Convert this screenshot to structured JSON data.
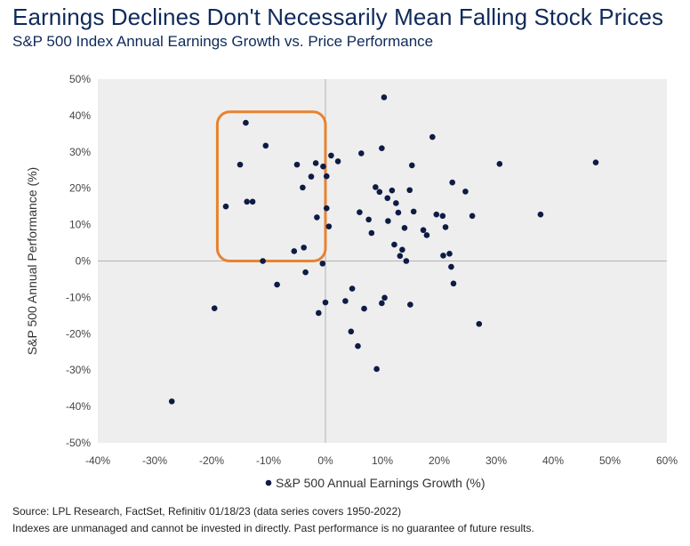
{
  "header": {
    "title": "Earnings Declines Don't Necessarily Mean Falling Stock Prices",
    "subtitle": "S&P 500 Index Annual Earnings Growth vs. Price Performance"
  },
  "footer": {
    "source": "Source: LPL Research, FactSet, Refinitiv 01/18/23 (data series covers 1950-2022)",
    "disclaimer": "Indexes are unmanaged and cannot be invested in directly. Past performance is no guarantee of future results."
  },
  "colors": {
    "point": "#0d1b45",
    "highlight_box": "#e8822f",
    "plot_background": "#eeeeee",
    "title": "#0f2a5a"
  },
  "chart_data": {
    "type": "scatter",
    "xlabel": "S&P 500 Annual Earnings Growth (%)",
    "ylabel": "S&P 500 Annual Performance (%)",
    "xlim": [
      -40,
      60
    ],
    "ylim": [
      -50,
      50
    ],
    "x_ticks": [
      -40,
      -30,
      -20,
      -10,
      0,
      10,
      20,
      30,
      40,
      50,
      60
    ],
    "y_ticks": [
      -50,
      -40,
      -30,
      -20,
      -10,
      0,
      10,
      20,
      30,
      40,
      50
    ],
    "x_tick_labels": [
      "-40%",
      "-30%",
      "-20%",
      "-10%",
      "0%",
      "10%",
      "20%",
      "30%",
      "40%",
      "50%",
      "60%"
    ],
    "y_tick_labels": [
      "-50%",
      "-40%",
      "-30%",
      "-20%",
      "-10%",
      "0%",
      "10%",
      "20%",
      "30%",
      "40%",
      "50%"
    ],
    "grid": false,
    "legend": {
      "position": "bottom",
      "label": "S&P 500 Annual Earnings Growth (%)"
    },
    "highlight_region": {
      "x": [
        -19,
        0
      ],
      "y": [
        0,
        41
      ]
    },
    "series": [
      {
        "points": [
          [
            -27,
            -38.6
          ],
          [
            -19.5,
            -13
          ],
          [
            -17.5,
            15
          ],
          [
            -15,
            26.5
          ],
          [
            -14,
            38
          ],
          [
            -13.8,
            16.3
          ],
          [
            -12.8,
            16.3
          ],
          [
            -11,
            0
          ],
          [
            -10.5,
            31.7
          ],
          [
            -8.5,
            -6.5
          ],
          [
            -5.5,
            2.7
          ],
          [
            -5,
            26.5
          ],
          [
            -4,
            20.2
          ],
          [
            -3.8,
            3.7
          ],
          [
            -3.5,
            -3.1
          ],
          [
            -2.5,
            23.2
          ],
          [
            -1.7,
            26.9
          ],
          [
            -1.5,
            12
          ],
          [
            -1.2,
            -14.3
          ],
          [
            -0.5,
            -0.7
          ],
          [
            -0.4,
            26
          ],
          [
            0,
            -11.4
          ],
          [
            0.2,
            23.3
          ],
          [
            0.2,
            14.5
          ],
          [
            0.6,
            9.5
          ],
          [
            1,
            29
          ],
          [
            2.2,
            27.4
          ],
          [
            3.5,
            -11
          ],
          [
            4.5,
            -19.4
          ],
          [
            4.7,
            -7.6
          ],
          [
            5.7,
            -23.4
          ],
          [
            6,
            13.4
          ],
          [
            6.3,
            29.6
          ],
          [
            6.8,
            -13.1
          ],
          [
            7.6,
            11.4
          ],
          [
            8.1,
            7.7
          ],
          [
            8.8,
            20.3
          ],
          [
            9,
            -29.7
          ],
          [
            9.5,
            19
          ],
          [
            9.9,
            -11.6
          ],
          [
            9.9,
            31
          ],
          [
            10.3,
            45
          ],
          [
            10.4,
            -10.1
          ],
          [
            10.9,
            17.3
          ],
          [
            11,
            11
          ],
          [
            11.7,
            19.4
          ],
          [
            12.1,
            4.5
          ],
          [
            12.4,
            15.9
          ],
          [
            12.8,
            13.3
          ],
          [
            13.1,
            1.4
          ],
          [
            13.5,
            3.1
          ],
          [
            13.9,
            9.1
          ],
          [
            14.2,
            0
          ],
          [
            14.8,
            19.5
          ],
          [
            14.9,
            -12
          ],
          [
            15.2,
            26.3
          ],
          [
            15.5,
            13.6
          ],
          [
            17.2,
            8.5
          ],
          [
            17.8,
            7.1
          ],
          [
            18.8,
            34.1
          ],
          [
            19.5,
            12.8
          ],
          [
            20.6,
            12.4
          ],
          [
            20.7,
            1.5
          ],
          [
            21.1,
            9.3
          ],
          [
            21.8,
            2
          ],
          [
            22.1,
            -1.6
          ],
          [
            22.3,
            21.6
          ],
          [
            22.5,
            -6.2
          ],
          [
            24.6,
            19.1
          ],
          [
            25.8,
            12.4
          ],
          [
            27,
            -17.3
          ],
          [
            30.6,
            26.7
          ],
          [
            37.8,
            12.8
          ],
          [
            47.5,
            27.1
          ]
        ]
      }
    ]
  }
}
